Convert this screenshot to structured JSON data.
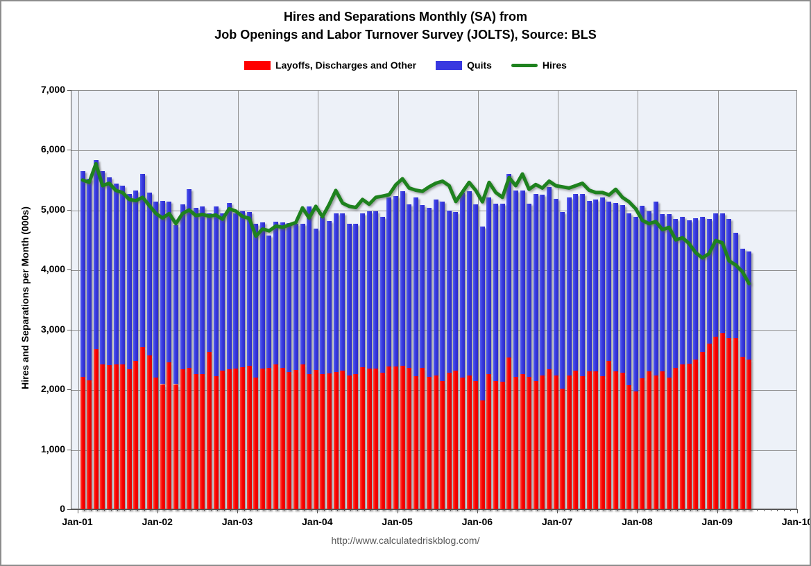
{
  "title": {
    "line1": "Hires and Separations Monthly (SA) from",
    "line2": "Job Openings and Labor Turnover Survey (JOLTS), Source: BLS"
  },
  "axes": {
    "y_label": "Hires and Separations per Month (000s)",
    "y_tick_labels": [
      "0",
      "1,000",
      "2,000",
      "3,000",
      "4,000",
      "5,000",
      "6,000",
      "7,000"
    ],
    "x_tick_labels": [
      "Jan-01",
      "Jan-02",
      "Jan-03",
      "Jan-04",
      "Jan-05",
      "Jan-06",
      "Jan-07",
      "Jan-08",
      "Jan-09",
      "Jan-10"
    ]
  },
  "footer": {
    "url": "http://www.calculatedriskblog.com/"
  },
  "chart_data": {
    "type": "stacked-bar+line",
    "frequency": "monthly",
    "start_month": "Jan-01",
    "end_month": "May-09",
    "ylim": [
      0,
      7000
    ],
    "y_tick_step": 1000,
    "grid": true,
    "legend_position": "top",
    "plot_bg": "#edf1f8",
    "series": [
      {
        "name": "Layoffs, Discharges and Other",
        "type": "bar",
        "stack_order": 0,
        "color": "#FE0000",
        "values": [
          2225,
          2165,
          2690,
          2430,
          2420,
          2435,
          2435,
          2350,
          2485,
          2720,
          2580,
          2215,
          2100,
          2465,
          2100,
          2350,
          2375,
          2270,
          2270,
          2640,
          2235,
          2330,
          2350,
          2355,
          2385,
          2405,
          2215,
          2355,
          2370,
          2430,
          2375,
          2300,
          2340,
          2430,
          2265,
          2340,
          2270,
          2280,
          2300,
          2330,
          2240,
          2270,
          2385,
          2355,
          2355,
          2290,
          2400,
          2390,
          2405,
          2370,
          2235,
          2370,
          2225,
          2250,
          2155,
          2290,
          2330,
          2215,
          2250,
          2155,
          1830,
          2270,
          2155,
          2140,
          2540,
          2225,
          2270,
          2225,
          2155,
          2240,
          2350,
          2240,
          2020,
          2250,
          2330,
          2235,
          2310,
          2310,
          2235,
          2485,
          2310,
          2290,
          2080,
          1980,
          2195,
          2310,
          2250,
          2310,
          2215,
          2370,
          2425,
          2445,
          2505,
          2640,
          2775,
          2890,
          2945,
          2870,
          2870,
          2560,
          2510
        ]
      },
      {
        "name": "Quits",
        "type": "bar",
        "stack_order": 1,
        "color": "#3838E0",
        "values": [
          3430,
          3365,
          3150,
          3225,
          3130,
          3020,
          2980,
          2930,
          2850,
          2890,
          2720,
          2935,
          3065,
          2680,
          2660,
          2755,
          2980,
          2780,
          2800,
          2310,
          2835,
          2620,
          2775,
          2595,
          2605,
          2565,
          2565,
          2445,
          2215,
          2385,
          2425,
          2490,
          2440,
          2350,
          2805,
          2360,
          2620,
          2540,
          2650,
          2620,
          2540,
          2510,
          2565,
          2635,
          2635,
          2600,
          2820,
          2850,
          2915,
          2735,
          2985,
          2720,
          2825,
          2935,
          2990,
          2710,
          2650,
          3085,
          3070,
          2945,
          2900,
          2950,
          2960,
          2975,
          3070,
          3105,
          3060,
          2890,
          3125,
          3030,
          3045,
          2960,
          2960,
          2970,
          2950,
          3045,
          2855,
          2875,
          2985,
          2660,
          2815,
          2800,
          2870,
          2915,
          2890,
          2680,
          2895,
          2625,
          2720,
          2485,
          2470,
          2390,
          2370,
          2255,
          2080,
          2060,
          2005,
          1990,
          1760,
          1800,
          1800
        ]
      },
      {
        "name": "Hires",
        "type": "line",
        "color": "#1E821E",
        "values": [
          5510,
          5470,
          5780,
          5415,
          5455,
          5335,
          5300,
          5185,
          5165,
          5220,
          5085,
          4950,
          4875,
          4950,
          4780,
          4950,
          5010,
          4915,
          4935,
          4905,
          4925,
          4855,
          5030,
          4990,
          4900,
          4870,
          4570,
          4690,
          4660,
          4740,
          4720,
          4760,
          4800,
          5045,
          4875,
          5070,
          4895,
          5100,
          5335,
          5125,
          5070,
          5050,
          5185,
          5105,
          5220,
          5240,
          5265,
          5430,
          5530,
          5375,
          5340,
          5320,
          5395,
          5455,
          5490,
          5415,
          5150,
          5310,
          5470,
          5335,
          5145,
          5470,
          5300,
          5220,
          5550,
          5415,
          5610,
          5355,
          5435,
          5375,
          5490,
          5415,
          5395,
          5375,
          5415,
          5455,
          5340,
          5300,
          5300,
          5260,
          5355,
          5220,
          5145,
          5030,
          4835,
          4780,
          4815,
          4680,
          4720,
          4510,
          4545,
          4450,
          4295,
          4210,
          4280,
          4500,
          4460,
          4160,
          4090,
          3980,
          3780
        ]
      }
    ]
  }
}
